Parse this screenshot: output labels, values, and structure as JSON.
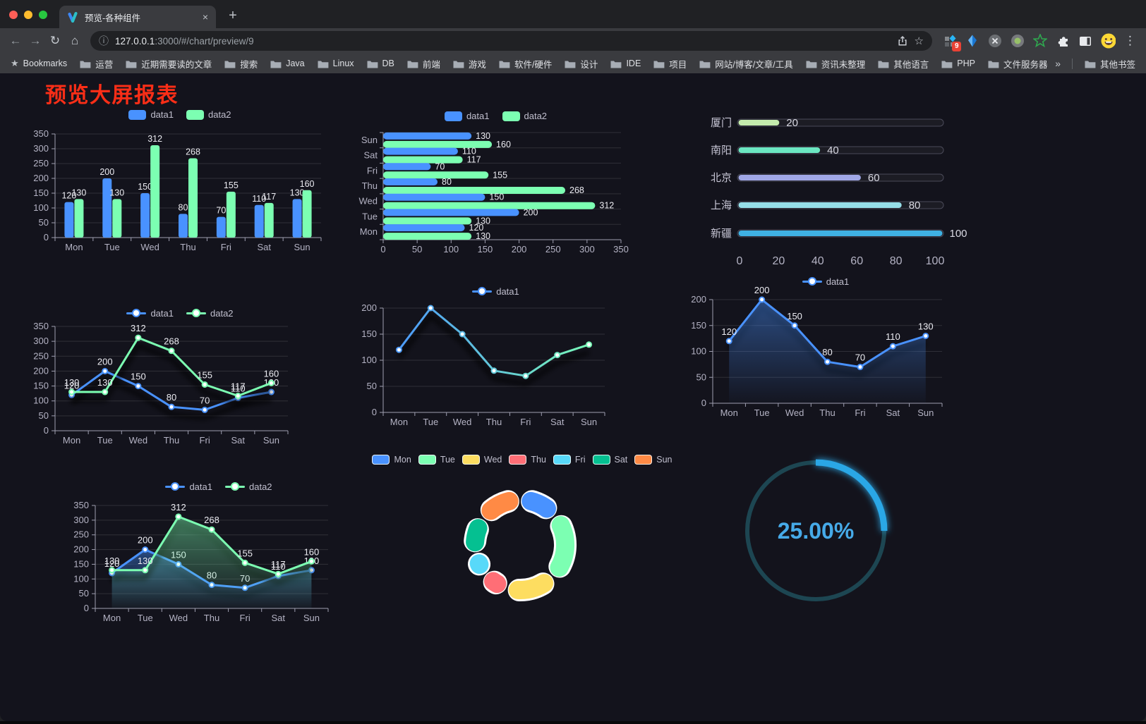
{
  "window": {
    "tab_title": "预览-各种组件",
    "close_glyph": "×",
    "new_tab_glyph": "+",
    "back_glyph": "←",
    "forward_glyph": "→",
    "reload_glyph": "↻",
    "home_glyph": "⌂",
    "info_glyph": "ⓘ",
    "bookmark_star_glyph": "☆",
    "url_host": "127.0.0.1",
    "url_path": ":3000/#/chart/preview/9",
    "extension_badge": "9",
    "extension_star_glyph": "☆",
    "menu_glyph": "⋮"
  },
  "bookmarks": {
    "root_label": "Bookmarks",
    "root_star_glyph": "★",
    "items": [
      "运营",
      "近期需要读的文章",
      "搜索",
      "Java",
      "Linux",
      "DB",
      "前端",
      "游戏",
      "软件/硬件",
      "设计",
      "IDE",
      "项目",
      "网站/博客/文章/工具",
      "资讯未整理",
      "其他语言",
      "PHP",
      "文件服务器"
    ],
    "overflow_glyph": "»",
    "other_label": "其他书签"
  },
  "page": {
    "title": "预览大屏报表",
    "title_color": "#fa2e17",
    "background": "#13131c"
  },
  "colors": {
    "data1_blue": "#4992ff",
    "data2_green": "#7cffb2",
    "axis_text": "#b4b3c4",
    "value_label": "#ececf2",
    "gauge_blue": "#2aa7e6"
  },
  "chart_data": [
    {
      "id": "grouped-bar",
      "type": "bar",
      "categories": [
        "Mon",
        "Tue",
        "Wed",
        "Thu",
        "Fri",
        "Sat",
        "Sun"
      ],
      "series": [
        {
          "name": "data1",
          "color": "#4992ff",
          "values": [
            120,
            200,
            150,
            80,
            70,
            110,
            130
          ]
        },
        {
          "name": "data2",
          "color": "#7cffb2",
          "values": [
            130,
            130,
            312,
            268,
            155,
            117,
            160
          ]
        }
      ],
      "ylim": [
        0,
        350
      ],
      "yticks": [
        0,
        50,
        100,
        150,
        200,
        250,
        300,
        350
      ],
      "legend_position": "top",
      "grid": true,
      "value_labels": true
    },
    {
      "id": "horizontal-bar",
      "type": "bar-horizontal",
      "categories_top_to_bottom": [
        "Sun",
        "Sat",
        "Fri",
        "Thu",
        "Wed",
        "Tue",
        "Mon"
      ],
      "series": [
        {
          "name": "data1",
          "color": "#4992ff",
          "values": [
            130,
            110,
            70,
            80,
            150,
            200,
            120
          ]
        },
        {
          "name": "data2",
          "color": "#7cffb2",
          "values": [
            160,
            117,
            155,
            268,
            312,
            130,
            130
          ]
        }
      ],
      "xlim": [
        0,
        350
      ],
      "xticks": [
        0,
        50,
        100,
        150,
        200,
        250,
        300,
        350
      ],
      "legend_position": "top",
      "grid": true,
      "value_labels": true
    },
    {
      "id": "progress-bars",
      "type": "progress",
      "max": 100,
      "xticks": [
        0,
        20,
        40,
        60,
        80,
        100
      ],
      "items": [
        {
          "label": "厦门",
          "value": 20,
          "color": "#c4ebad"
        },
        {
          "label": "南阳",
          "value": 40,
          "color": "#6be6c1"
        },
        {
          "label": "北京",
          "value": 60,
          "color": "#a0a7e6"
        },
        {
          "label": "上海",
          "value": 80,
          "color": "#96dee8"
        },
        {
          "label": "新疆",
          "value": 100,
          "color": "#3fb1e3"
        }
      ]
    },
    {
      "id": "line-dual",
      "type": "line",
      "categories": [
        "Mon",
        "Tue",
        "Wed",
        "Thu",
        "Fri",
        "Sat",
        "Sun"
      ],
      "series": [
        {
          "name": "data1",
          "color": "#4992ff",
          "values": [
            120,
            200,
            150,
            80,
            70,
            110,
            130
          ]
        },
        {
          "name": "data2",
          "color": "#7cffb2",
          "values": [
            130,
            130,
            312,
            268,
            155,
            117,
            160
          ]
        }
      ],
      "ylim": [
        0,
        350
      ],
      "yticks": [
        0,
        50,
        100,
        150,
        200,
        250,
        300,
        350
      ],
      "area": false,
      "show_labels": true,
      "legend_position": "top"
    },
    {
      "id": "gradient-line",
      "type": "line",
      "categories": [
        "Mon",
        "Tue",
        "Wed",
        "Thu",
        "Fri",
        "Sat",
        "Sun"
      ],
      "series": [
        {
          "name": "data1",
          "color": "#4992ff",
          "gradient": [
            "#4992ff",
            "#7cffb2"
          ],
          "values": [
            120,
            200,
            150,
            80,
            70,
            110,
            130
          ]
        }
      ],
      "ylim": [
        0,
        200
      ],
      "yticks": [
        0,
        50,
        100,
        150,
        200
      ],
      "area": false,
      "show_labels": false,
      "legend_position": "top"
    },
    {
      "id": "area-line",
      "type": "area",
      "categories": [
        "Mon",
        "Tue",
        "Wed",
        "Thu",
        "Fri",
        "Sat",
        "Sun"
      ],
      "series": [
        {
          "name": "data1",
          "color": "#4992ff",
          "values": [
            120,
            200,
            150,
            80,
            70,
            110,
            130
          ]
        }
      ],
      "ylim": [
        0,
        200
      ],
      "yticks": [
        0,
        50,
        100,
        150,
        200
      ],
      "area": true,
      "show_labels": true,
      "legend_position": "top"
    },
    {
      "id": "dual-area-line",
      "type": "area",
      "categories": [
        "Mon",
        "Tue",
        "Wed",
        "Thu",
        "Fri",
        "Sat",
        "Sun"
      ],
      "series": [
        {
          "name": "data1",
          "color": "#4992ff",
          "values": [
            120,
            200,
            150,
            80,
            70,
            110,
            130
          ]
        },
        {
          "name": "data2",
          "color": "#7cffb2",
          "values": [
            130,
            130,
            312,
            268,
            155,
            117,
            160
          ]
        }
      ],
      "ylim": [
        0,
        350
      ],
      "yticks": [
        0,
        50,
        100,
        150,
        200,
        250,
        300,
        350
      ],
      "area": true,
      "show_labels": true,
      "legend_position": "top"
    },
    {
      "id": "donut",
      "type": "pie",
      "inner_radius_ratio": 0.6,
      "start_angle_deg": 0,
      "clockwise": true,
      "items": [
        {
          "name": "Mon",
          "value": 120,
          "color": "#4992ff"
        },
        {
          "name": "Tue",
          "value": 200,
          "color": "#7cffb2"
        },
        {
          "name": "Wed",
          "value": 150,
          "color": "#fddd60"
        },
        {
          "name": "Thu",
          "value": 80,
          "color": "#ff6e76"
        },
        {
          "name": "Fri",
          "value": 70,
          "color": "#58d9f9"
        },
        {
          "name": "Sat",
          "value": 110,
          "color": "#05c091"
        },
        {
          "name": "Sun",
          "value": 130,
          "color": "#ff8a45"
        }
      ],
      "legend_position": "top"
    },
    {
      "id": "gauge",
      "type": "gauge",
      "value": 25,
      "max": 100,
      "display": "25.00%",
      "color": "#2aa7e6",
      "track_color": "#1d4652"
    }
  ]
}
